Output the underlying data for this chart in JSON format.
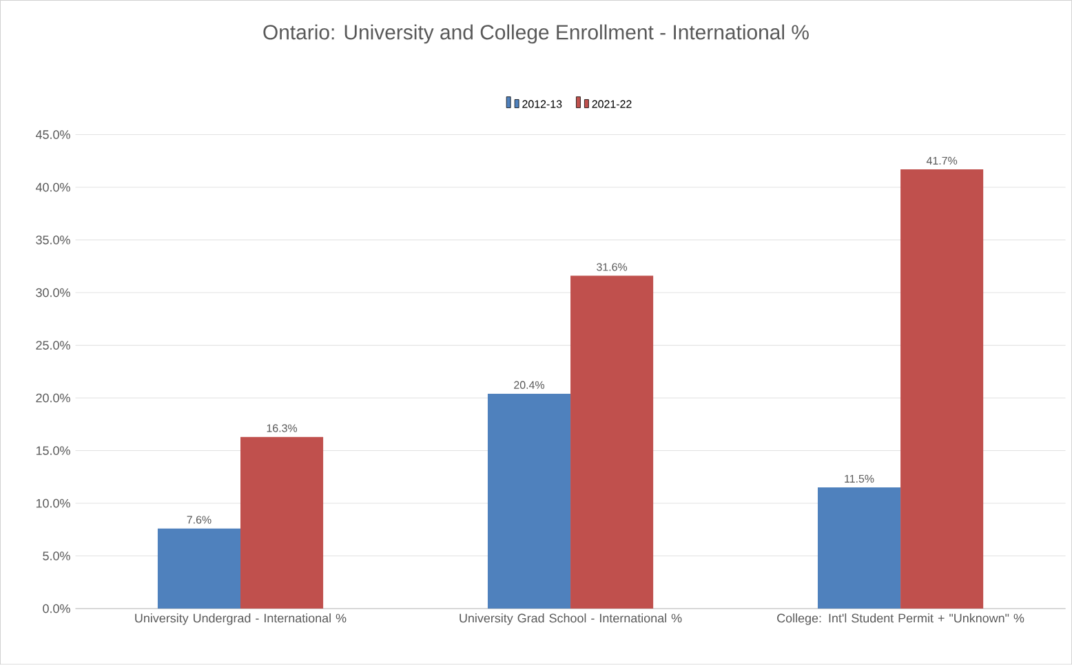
{
  "chart_data": {
    "type": "bar",
    "title": "Ontario: University and College Enrollment - International %",
    "categories": [
      "University Undergrad - International %",
      "University Grad School - International %",
      "College:  Int'l Student Permit + \"Unknown\" %"
    ],
    "series": [
      {
        "name": "2012-13",
        "color": "#4f81bd",
        "values": [
          7.6,
          20.4,
          11.5
        ],
        "value_labels": [
          "7.6%",
          "20.4%",
          "11.5%"
        ]
      },
      {
        "name": "2021-22",
        "color": "#c0504d",
        "values": [
          16.3,
          31.6,
          41.7
        ],
        "value_labels": [
          "16.3%",
          "31.6%",
          "41.7%"
        ]
      }
    ],
    "ylim": [
      0,
      45
    ],
    "yticks": [
      {
        "value": 0,
        "label": "0.0%"
      },
      {
        "value": 5,
        "label": "5.0%"
      },
      {
        "value": 10,
        "label": "10.0%"
      },
      {
        "value": 15,
        "label": "15.0%"
      },
      {
        "value": 20,
        "label": "20.0%"
      },
      {
        "value": 25,
        "label": "25.0%"
      },
      {
        "value": 30,
        "label": "30.0%"
      },
      {
        "value": 35,
        "label": "35.0%"
      },
      {
        "value": 40,
        "label": "40.0%"
      },
      {
        "value": 45,
        "label": "45.0%"
      }
    ],
    "grid": "y",
    "legend": "top"
  }
}
